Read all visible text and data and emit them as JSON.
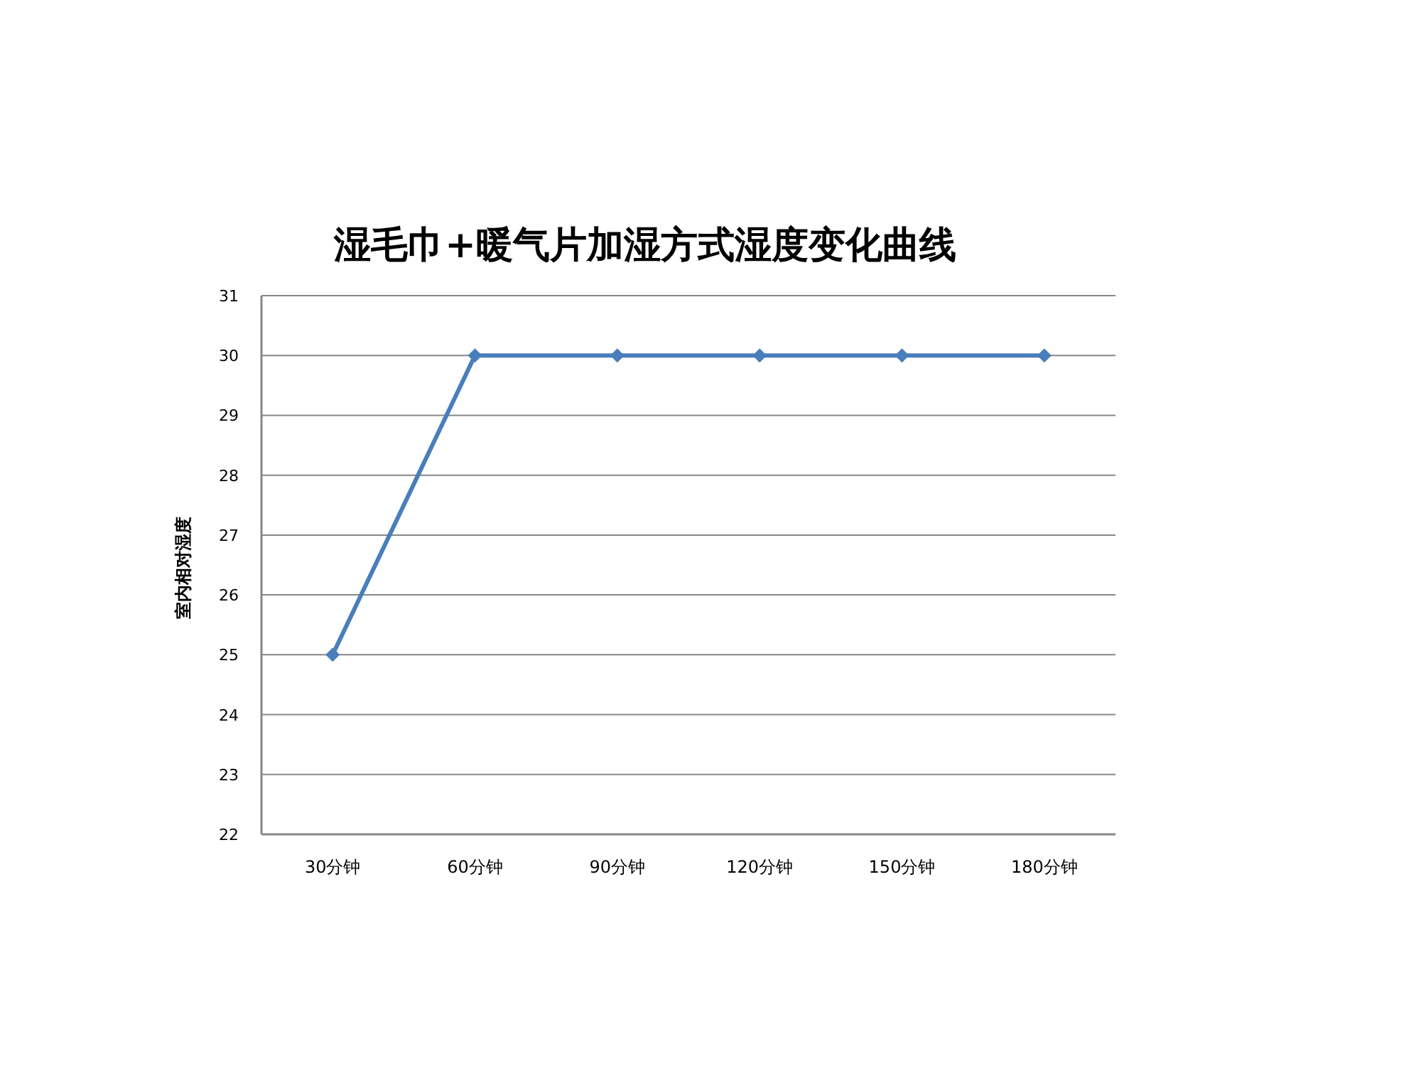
{
  "chart_data": {
    "type": "line",
    "title": "湿毛巾+暖气片加湿方式湿度变化曲线",
    "ylabel": "室内相对湿度",
    "categories": [
      "30分钟",
      "60分钟",
      "90分钟",
      "120分钟",
      "150分钟",
      "180分钟"
    ],
    "series": [
      {
        "color": "#4a7ebb",
        "values": [
          25,
          30,
          30,
          30,
          30,
          30
        ]
      }
    ],
    "ylim": [
      22,
      31
    ],
    "yticks": [
      22,
      23,
      24,
      25,
      26,
      27,
      28,
      29,
      30,
      31
    ],
    "grid": "y",
    "marker": "diamond",
    "line_style": "solid"
  }
}
